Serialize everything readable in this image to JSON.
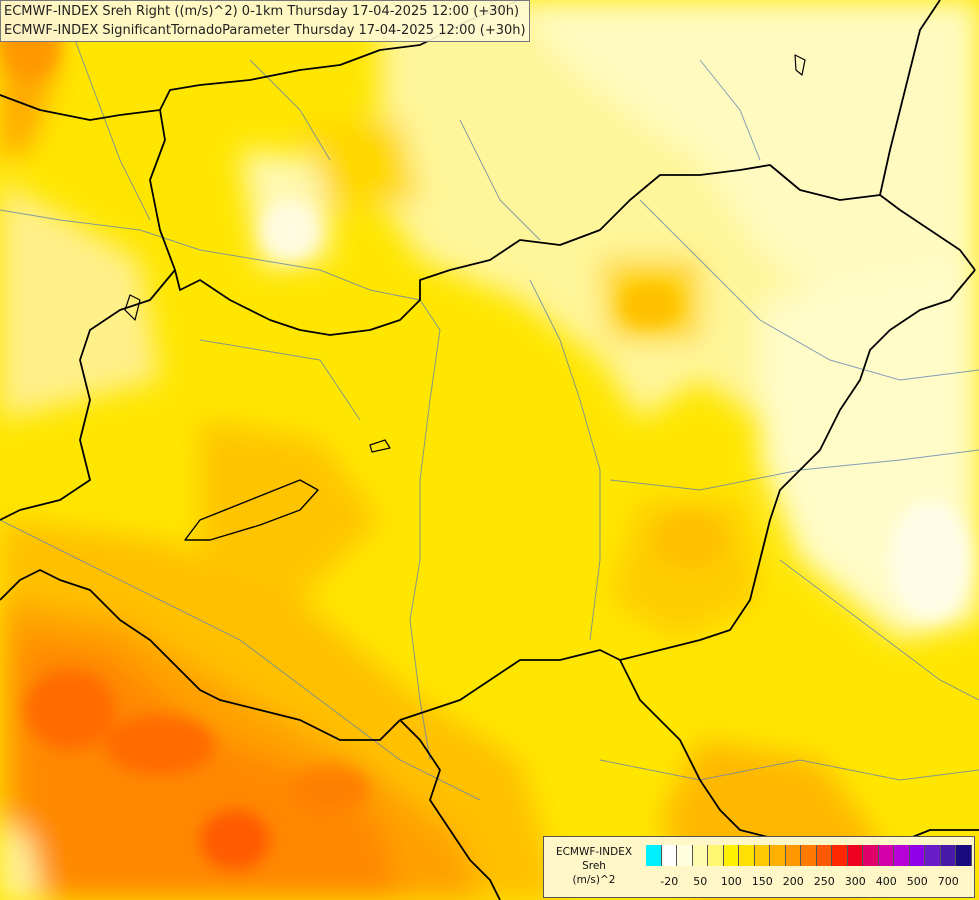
{
  "map": {
    "titles": [
      "ECMWF-INDEX Sreh Right ((m/s)^2) 0-1km Thursday 17-04-2025 12:00 (+30h)",
      "ECMWF-INDEX SignificantTornadoParameter Thursday 17-04-2025 12:00 (+30h)"
    ]
  },
  "legend": {
    "title_line1": "ECMWF-INDEX",
    "title_line2": "Sreh",
    "title_line3": "(m/s)^2",
    "colors": [
      "#00f0ff",
      "#ffffff",
      "#ffffe0",
      "#fffcb0",
      "#fff870",
      "#fff000",
      "#ffe000",
      "#ffc800",
      "#ffb000",
      "#ff9800",
      "#ff7a00",
      "#ff5a00",
      "#ff2800",
      "#ef0020",
      "#e0006a",
      "#d400a8",
      "#b800d8",
      "#9000e8",
      "#6a1cc8",
      "#4818a8",
      "#1a0a80"
    ],
    "ticks": [
      "-20",
      "50",
      "100",
      "150",
      "200",
      "250",
      "300",
      "400",
      "500",
      "700"
    ]
  }
}
